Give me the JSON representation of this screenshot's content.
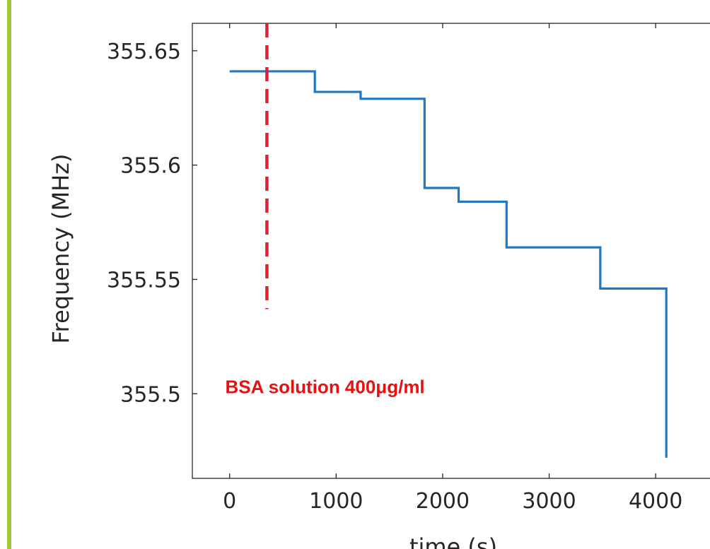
{
  "accent_color": "#a5c739",
  "chart_data": {
    "type": "line",
    "xlabel": "time (s)",
    "ylabel": "Frequency (MHz)",
    "xlim": [
      -350,
      4550
    ],
    "ylim": [
      355.463,
      355.662
    ],
    "x_ticks": [
      0,
      1000,
      2000,
      3000,
      4000
    ],
    "x_tick_labels": [
      "0",
      "1000",
      "2000",
      "3000",
      "4000"
    ],
    "y_ticks": [
      355.5,
      355.55,
      355.6,
      355.65
    ],
    "y_tick_labels": [
      "355.5",
      "355.55",
      "355.6",
      "355.65"
    ],
    "grid": false,
    "series": [
      {
        "color": "#1f78c1",
        "step": true,
        "x": [
          0,
          800,
          1230,
          1830,
          2150,
          2600,
          3480,
          4100,
          4100
        ],
        "y": [
          355.641,
          355.632,
          355.629,
          355.59,
          355.584,
          355.564,
          355.546,
          355.546,
          355.472
        ]
      }
    ],
    "vline": {
      "x": 350,
      "y_from": 355.537,
      "y_to": 355.662,
      "color": "#e01f33",
      "style": "dashed"
    },
    "annotation": {
      "text": "BSA solution 400μg/ml",
      "x": 5,
      "y": 355.503,
      "color": "#e81010"
    }
  }
}
